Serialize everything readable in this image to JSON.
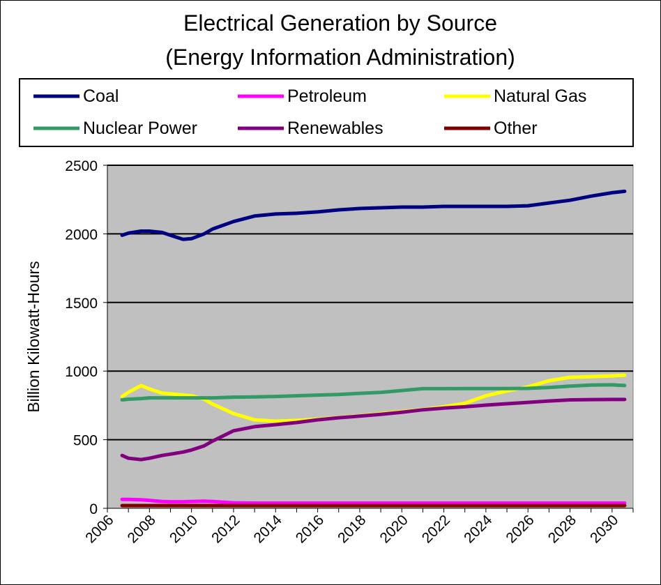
{
  "chart_data": {
    "type": "line",
    "title": "Electrical Generation by Source",
    "subtitle": "(Energy Information Administration)",
    "xlabel": "",
    "ylabel": "Billion Kilowatt-Hours",
    "xlim": [
      2006,
      2031
    ],
    "ylim": [
      0,
      2500
    ],
    "yticks": [
      0,
      500,
      1000,
      1500,
      2000,
      2500
    ],
    "xticks": [
      2006,
      2008,
      2010,
      2012,
      2014,
      2016,
      2018,
      2020,
      2022,
      2024,
      2026,
      2028,
      2030
    ],
    "grid": "horizontal",
    "legend_position": "top",
    "plot_background": "#c0c0c0",
    "x": [
      2006.7,
      2007,
      2007.6,
      2008,
      2008.6,
      2009,
      2009.6,
      2010,
      2010.6,
      2011,
      2012,
      2013,
      2014,
      2015,
      2016,
      2017,
      2018,
      2019,
      2020,
      2021,
      2022,
      2023,
      2024,
      2025,
      2026,
      2027,
      2028,
      2029,
      2030,
      2030.6
    ],
    "series": [
      {
        "name": "Coal",
        "color": "#000080",
        "values": [
          1990,
          2005,
          2020,
          2020,
          2010,
          1990,
          1960,
          1965,
          2000,
          2035,
          2090,
          2130,
          2145,
          2150,
          2160,
          2175,
          2185,
          2190,
          2195,
          2195,
          2200,
          2200,
          2200,
          2200,
          2205,
          2225,
          2245,
          2275,
          2300,
          2310
        ]
      },
      {
        "name": "Petroleum",
        "color": "#ff00ff",
        "values": [
          65,
          65,
          62,
          58,
          50,
          48,
          48,
          50,
          52,
          50,
          40,
          38,
          38,
          38,
          38,
          38,
          38,
          38,
          38,
          38,
          38,
          38,
          38,
          38,
          38,
          38,
          38,
          38,
          38,
          38
        ]
      },
      {
        "name": "Natural Gas",
        "color": "#ffff00",
        "values": [
          815,
          845,
          895,
          870,
          840,
          835,
          825,
          820,
          795,
          760,
          690,
          645,
          635,
          640,
          650,
          662,
          675,
          690,
          705,
          720,
          740,
          765,
          820,
          855,
          885,
          930,
          955,
          960,
          965,
          970
        ]
      },
      {
        "name": "Nuclear Power",
        "color": "#339966",
        "values": [
          790,
          795,
          800,
          805,
          805,
          805,
          805,
          805,
          805,
          805,
          810,
          812,
          815,
          820,
          825,
          830,
          838,
          845,
          858,
          872,
          872,
          873,
          873,
          873,
          874,
          880,
          890,
          898,
          900,
          895
        ]
      },
      {
        "name": "Renewables",
        "color": "#800080",
        "values": [
          385,
          365,
          355,
          365,
          385,
          395,
          410,
          425,
          455,
          490,
          565,
          595,
          610,
          625,
          645,
          660,
          672,
          685,
          700,
          718,
          730,
          740,
          752,
          762,
          772,
          782,
          790,
          792,
          793,
          793
        ]
      },
      {
        "name": "Other",
        "color": "#800000",
        "values": [
          20,
          20,
          20,
          20,
          20,
          20,
          20,
          20,
          20,
          20,
          20,
          20,
          20,
          20,
          20,
          20,
          20,
          20,
          20,
          20,
          20,
          20,
          20,
          20,
          20,
          20,
          20,
          20,
          20,
          20
        ]
      }
    ]
  }
}
